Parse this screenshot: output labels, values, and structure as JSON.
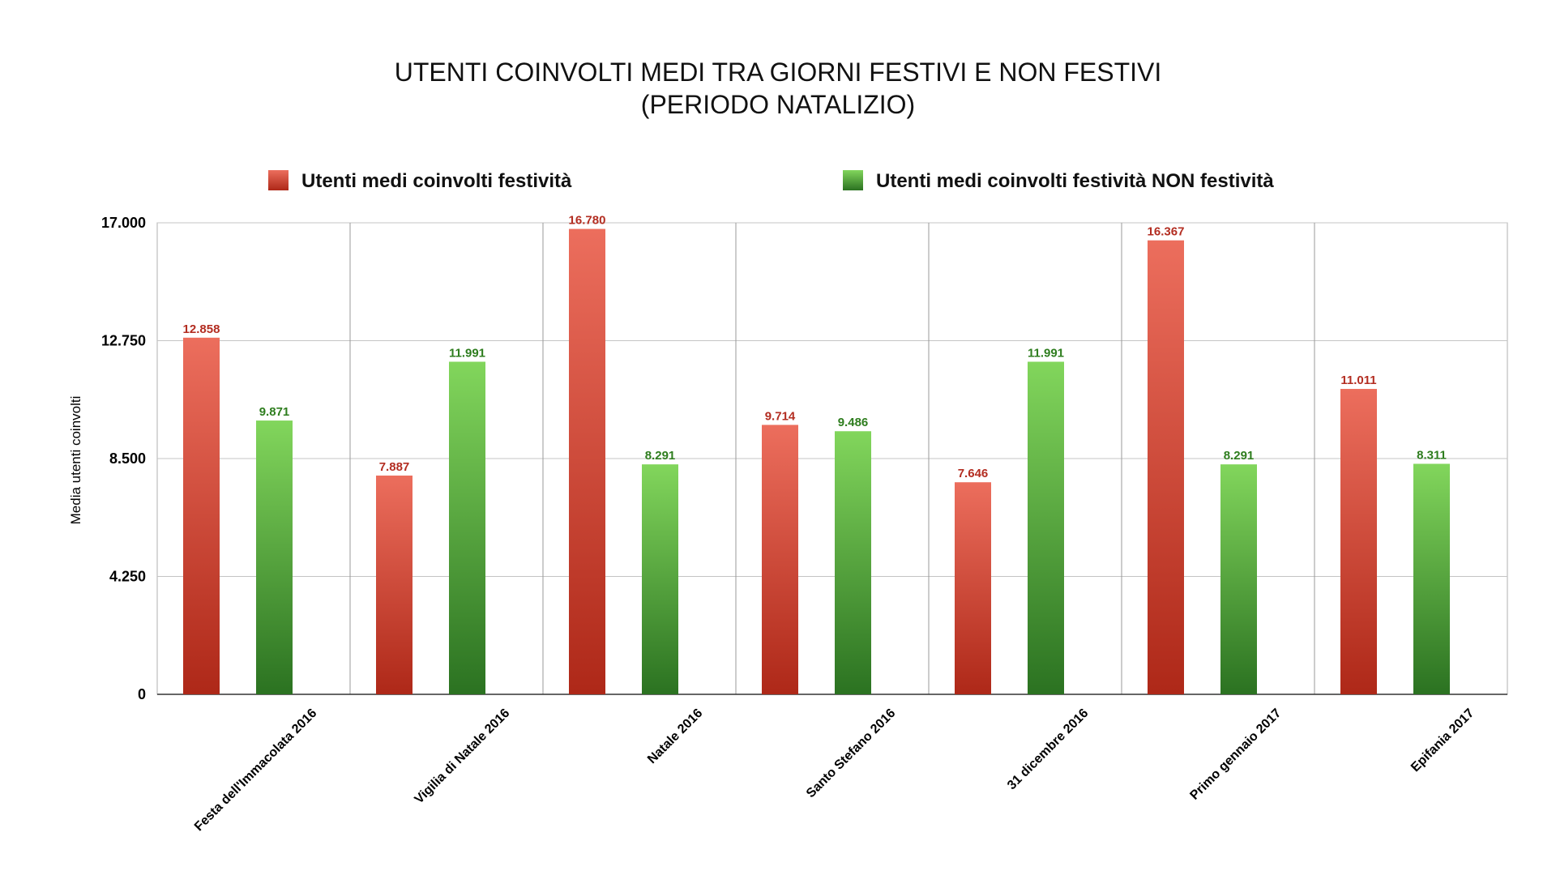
{
  "chart_data": {
    "type": "bar",
    "title_lines": [
      "UTENTI COINVOLTI MEDI TRA GIORNI FESTIVI E NON FESTIVI",
      "(PERIODO NATALIZIO)"
    ],
    "ylabel": "Media utenti coinvolti",
    "xlabel": "",
    "ylim": [
      0,
      17000
    ],
    "yticks": [
      {
        "value": 0,
        "label": "0"
      },
      {
        "value": 4250,
        "label": "4.250"
      },
      {
        "value": 8500,
        "label": "8.500"
      },
      {
        "value": 12750,
        "label": "12.750"
      },
      {
        "value": 17000,
        "label": "17.000"
      }
    ],
    "grid": true,
    "legend_position": "top",
    "categories": [
      "Festa dell'Immacolata 2016",
      "Vigilia di Natale 2016",
      "Natale 2016",
      "Santo Stefano 2016",
      "31 dicembre 2016",
      "Primo gennaio 2017",
      "Epifania 2017"
    ],
    "series": [
      {
        "name": "Utenti medi coinvolti festività",
        "color": "#c7392a",
        "label_color": "#b32d21",
        "values": [
          12858,
          7887,
          16780,
          9714,
          7646,
          16367,
          11011
        ],
        "labels": [
          "12.858",
          "7.887",
          "16.780",
          "9.714",
          "7.646",
          "16.367",
          "11.011"
        ]
      },
      {
        "name": "Utenti medi coinvolti festività NON festività",
        "color": "#4aa532",
        "label_color": "#2e7d1e",
        "values": [
          9871,
          11991,
          8291,
          9486,
          11991,
          8291,
          8311
        ],
        "labels": [
          "9.871",
          "11.991",
          "8.291",
          "9.486",
          "11.991",
          "8.291",
          "8.311"
        ]
      }
    ]
  }
}
